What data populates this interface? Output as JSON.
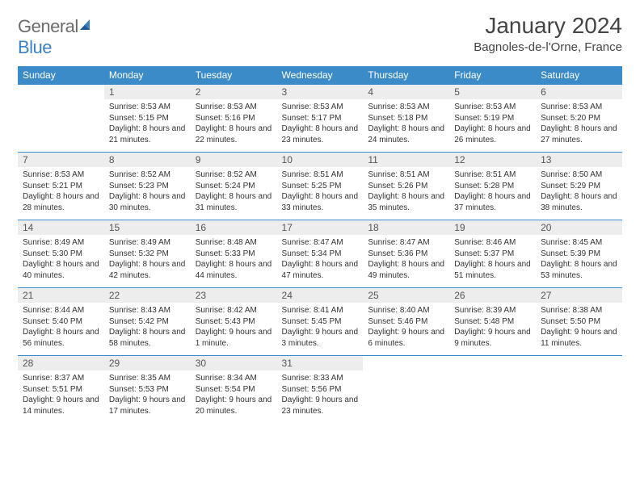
{
  "brand": {
    "general": "General",
    "blue": "Blue"
  },
  "title": "January 2024",
  "location": "Bagnoles-de-l'Orne, France",
  "colors": {
    "header_bg": "#3b8bc9",
    "header_text": "#ffffff",
    "daynum_bg": "#ededed",
    "border": "#3b8bc9",
    "logo_blue": "#3b82c4",
    "logo_gray": "#6b6b6b"
  },
  "daysOfWeek": [
    "Sunday",
    "Monday",
    "Tuesday",
    "Wednesday",
    "Thursday",
    "Friday",
    "Saturday"
  ],
  "weeks": [
    [
      {
        "n": "",
        "sr": "",
        "ss": "",
        "dl": ""
      },
      {
        "n": "1",
        "sr": "Sunrise: 8:53 AM",
        "ss": "Sunset: 5:15 PM",
        "dl": "Daylight: 8 hours and 21 minutes."
      },
      {
        "n": "2",
        "sr": "Sunrise: 8:53 AM",
        "ss": "Sunset: 5:16 PM",
        "dl": "Daylight: 8 hours and 22 minutes."
      },
      {
        "n": "3",
        "sr": "Sunrise: 8:53 AM",
        "ss": "Sunset: 5:17 PM",
        "dl": "Daylight: 8 hours and 23 minutes."
      },
      {
        "n": "4",
        "sr": "Sunrise: 8:53 AM",
        "ss": "Sunset: 5:18 PM",
        "dl": "Daylight: 8 hours and 24 minutes."
      },
      {
        "n": "5",
        "sr": "Sunrise: 8:53 AM",
        "ss": "Sunset: 5:19 PM",
        "dl": "Daylight: 8 hours and 26 minutes."
      },
      {
        "n": "6",
        "sr": "Sunrise: 8:53 AM",
        "ss": "Sunset: 5:20 PM",
        "dl": "Daylight: 8 hours and 27 minutes."
      }
    ],
    [
      {
        "n": "7",
        "sr": "Sunrise: 8:53 AM",
        "ss": "Sunset: 5:21 PM",
        "dl": "Daylight: 8 hours and 28 minutes."
      },
      {
        "n": "8",
        "sr": "Sunrise: 8:52 AM",
        "ss": "Sunset: 5:23 PM",
        "dl": "Daylight: 8 hours and 30 minutes."
      },
      {
        "n": "9",
        "sr": "Sunrise: 8:52 AM",
        "ss": "Sunset: 5:24 PM",
        "dl": "Daylight: 8 hours and 31 minutes."
      },
      {
        "n": "10",
        "sr": "Sunrise: 8:51 AM",
        "ss": "Sunset: 5:25 PM",
        "dl": "Daylight: 8 hours and 33 minutes."
      },
      {
        "n": "11",
        "sr": "Sunrise: 8:51 AM",
        "ss": "Sunset: 5:26 PM",
        "dl": "Daylight: 8 hours and 35 minutes."
      },
      {
        "n": "12",
        "sr": "Sunrise: 8:51 AM",
        "ss": "Sunset: 5:28 PM",
        "dl": "Daylight: 8 hours and 37 minutes."
      },
      {
        "n": "13",
        "sr": "Sunrise: 8:50 AM",
        "ss": "Sunset: 5:29 PM",
        "dl": "Daylight: 8 hours and 38 minutes."
      }
    ],
    [
      {
        "n": "14",
        "sr": "Sunrise: 8:49 AM",
        "ss": "Sunset: 5:30 PM",
        "dl": "Daylight: 8 hours and 40 minutes."
      },
      {
        "n": "15",
        "sr": "Sunrise: 8:49 AM",
        "ss": "Sunset: 5:32 PM",
        "dl": "Daylight: 8 hours and 42 minutes."
      },
      {
        "n": "16",
        "sr": "Sunrise: 8:48 AM",
        "ss": "Sunset: 5:33 PM",
        "dl": "Daylight: 8 hours and 44 minutes."
      },
      {
        "n": "17",
        "sr": "Sunrise: 8:47 AM",
        "ss": "Sunset: 5:34 PM",
        "dl": "Daylight: 8 hours and 47 minutes."
      },
      {
        "n": "18",
        "sr": "Sunrise: 8:47 AM",
        "ss": "Sunset: 5:36 PM",
        "dl": "Daylight: 8 hours and 49 minutes."
      },
      {
        "n": "19",
        "sr": "Sunrise: 8:46 AM",
        "ss": "Sunset: 5:37 PM",
        "dl": "Daylight: 8 hours and 51 minutes."
      },
      {
        "n": "20",
        "sr": "Sunrise: 8:45 AM",
        "ss": "Sunset: 5:39 PM",
        "dl": "Daylight: 8 hours and 53 minutes."
      }
    ],
    [
      {
        "n": "21",
        "sr": "Sunrise: 8:44 AM",
        "ss": "Sunset: 5:40 PM",
        "dl": "Daylight: 8 hours and 56 minutes."
      },
      {
        "n": "22",
        "sr": "Sunrise: 8:43 AM",
        "ss": "Sunset: 5:42 PM",
        "dl": "Daylight: 8 hours and 58 minutes."
      },
      {
        "n": "23",
        "sr": "Sunrise: 8:42 AM",
        "ss": "Sunset: 5:43 PM",
        "dl": "Daylight: 9 hours and 1 minute."
      },
      {
        "n": "24",
        "sr": "Sunrise: 8:41 AM",
        "ss": "Sunset: 5:45 PM",
        "dl": "Daylight: 9 hours and 3 minutes."
      },
      {
        "n": "25",
        "sr": "Sunrise: 8:40 AM",
        "ss": "Sunset: 5:46 PM",
        "dl": "Daylight: 9 hours and 6 minutes."
      },
      {
        "n": "26",
        "sr": "Sunrise: 8:39 AM",
        "ss": "Sunset: 5:48 PM",
        "dl": "Daylight: 9 hours and 9 minutes."
      },
      {
        "n": "27",
        "sr": "Sunrise: 8:38 AM",
        "ss": "Sunset: 5:50 PM",
        "dl": "Daylight: 9 hours and 11 minutes."
      }
    ],
    [
      {
        "n": "28",
        "sr": "Sunrise: 8:37 AM",
        "ss": "Sunset: 5:51 PM",
        "dl": "Daylight: 9 hours and 14 minutes."
      },
      {
        "n": "29",
        "sr": "Sunrise: 8:35 AM",
        "ss": "Sunset: 5:53 PM",
        "dl": "Daylight: 9 hours and 17 minutes."
      },
      {
        "n": "30",
        "sr": "Sunrise: 8:34 AM",
        "ss": "Sunset: 5:54 PM",
        "dl": "Daylight: 9 hours and 20 minutes."
      },
      {
        "n": "31",
        "sr": "Sunrise: 8:33 AM",
        "ss": "Sunset: 5:56 PM",
        "dl": "Daylight: 9 hours and 23 minutes."
      },
      {
        "n": "",
        "sr": "",
        "ss": "",
        "dl": ""
      },
      {
        "n": "",
        "sr": "",
        "ss": "",
        "dl": ""
      },
      {
        "n": "",
        "sr": "",
        "ss": "",
        "dl": ""
      }
    ]
  ]
}
